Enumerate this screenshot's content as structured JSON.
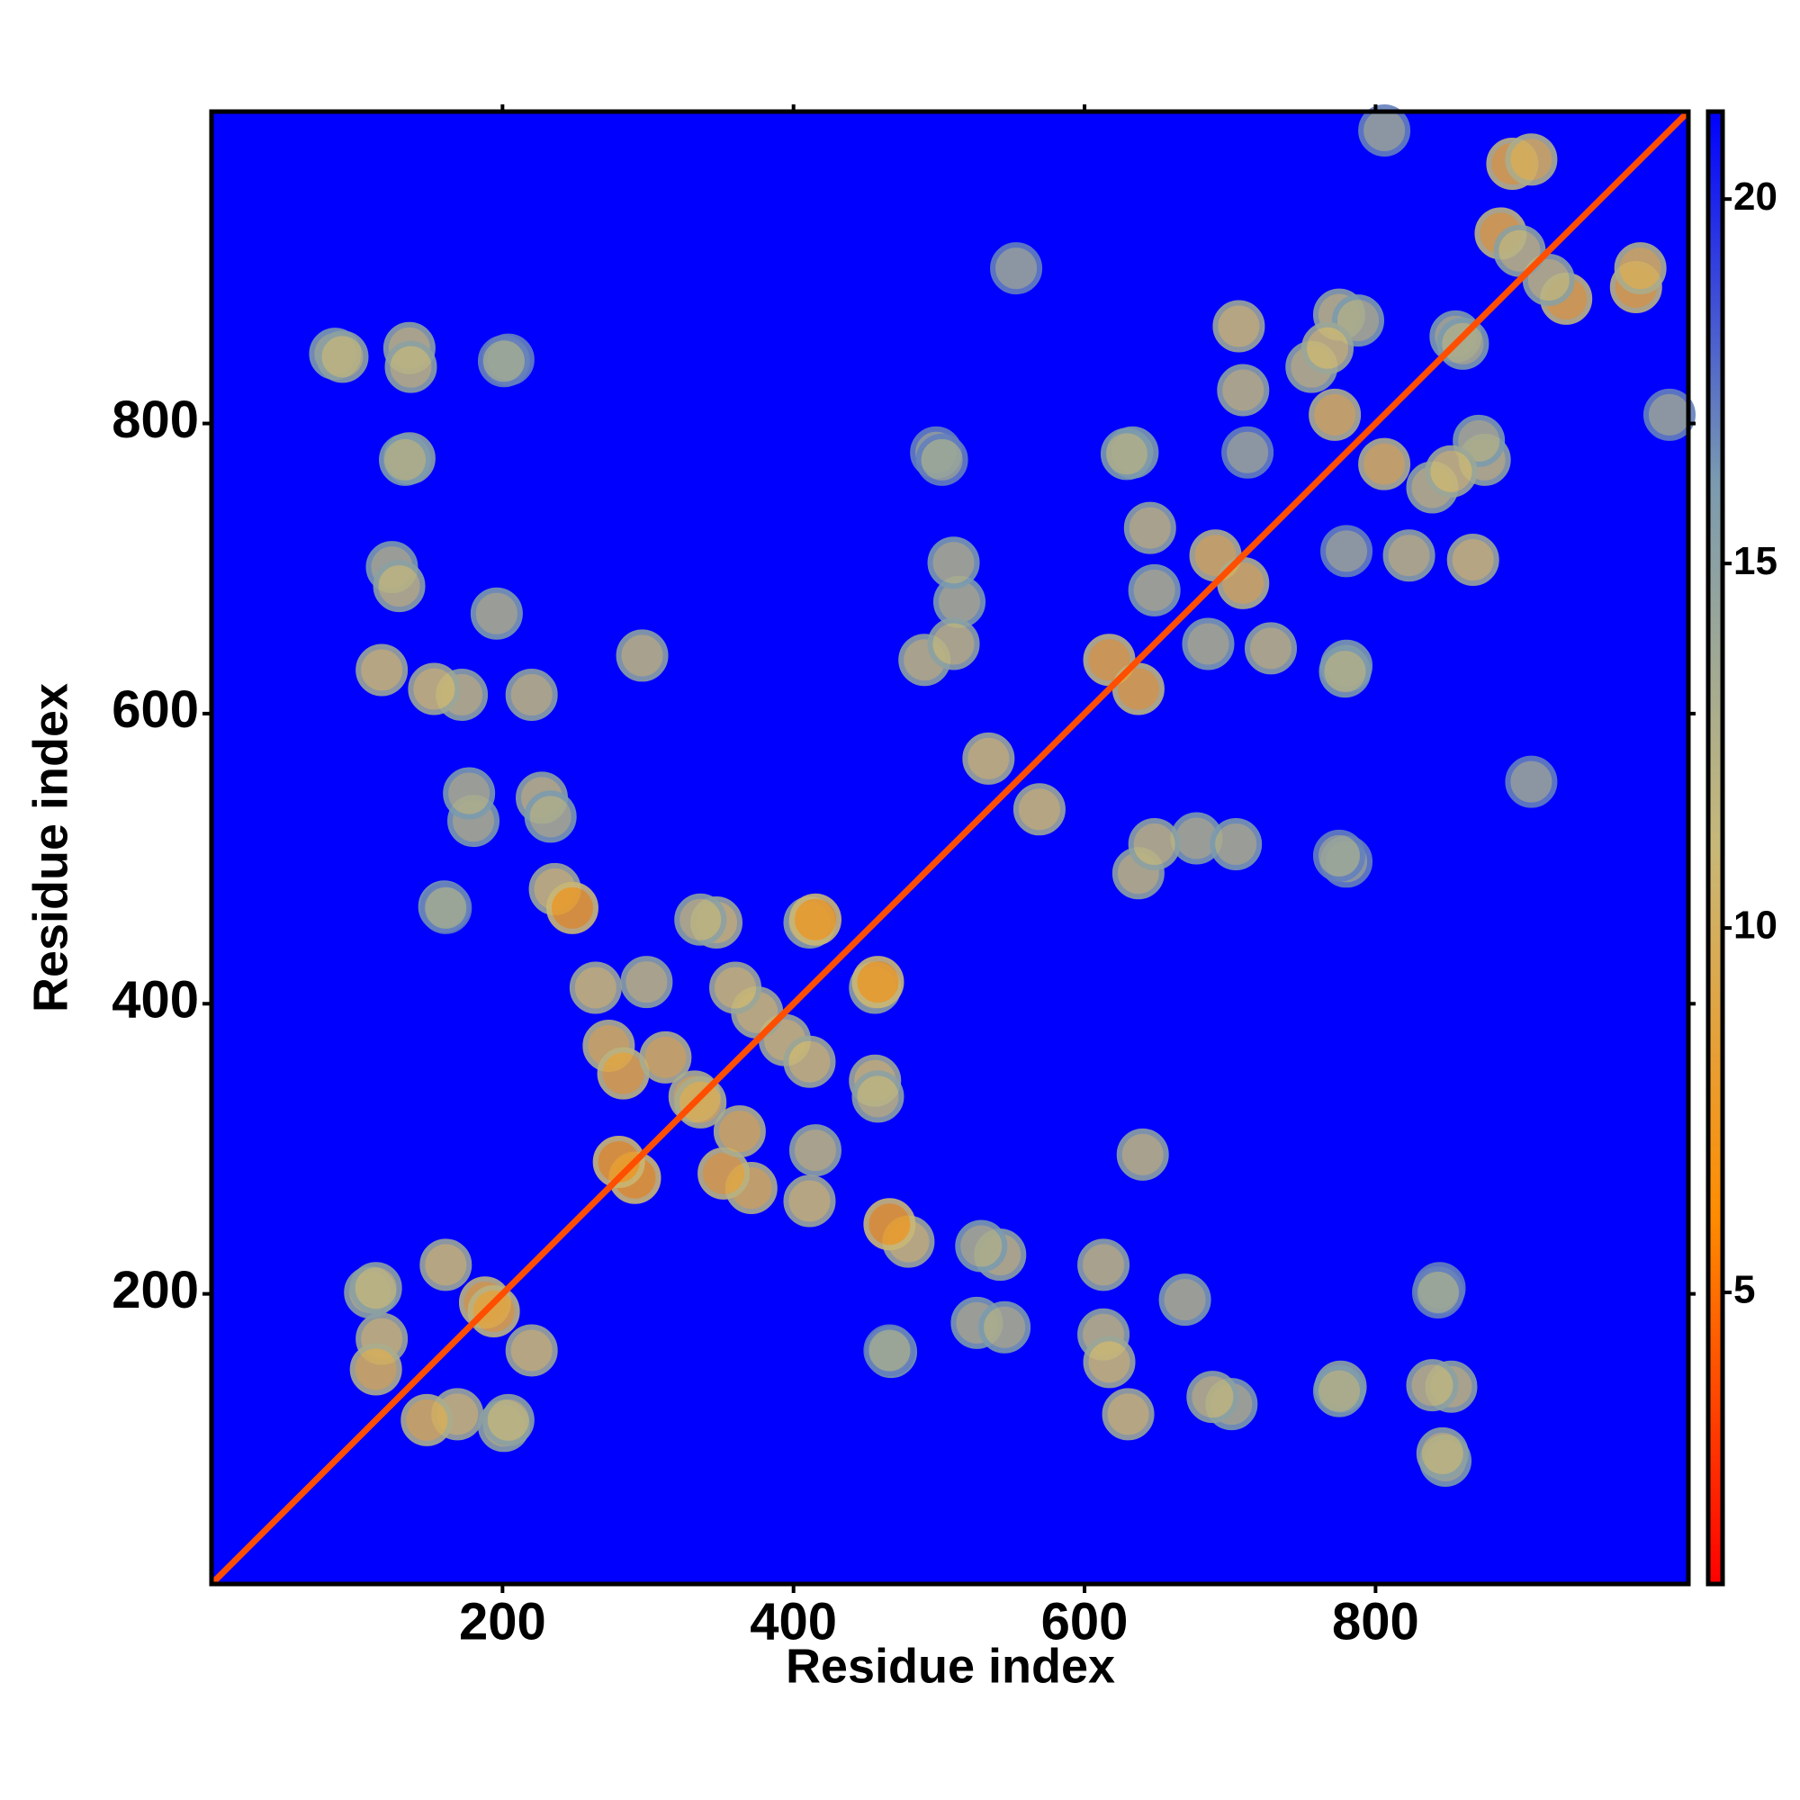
{
  "chart_data": {
    "type": "heatmap",
    "x_label": "Residue index",
    "y_label": "Residue index",
    "xlim": [
      0,
      1015
    ],
    "ylim": [
      0,
      1015
    ],
    "xticks": [
      200,
      400,
      600,
      800
    ],
    "yticks": [
      200,
      400,
      600,
      800
    ],
    "clim": [
      1,
      21.2
    ],
    "cticks": [
      5,
      10,
      15,
      20
    ],
    "colors": [
      "#ff0000",
      "#ff8c00",
      "#c8b878",
      "#7a9ab0",
      "#0000ff"
    ],
    "diagonal": 3.8,
    "contacts": {
      "x": [
        85,
        136,
        204,
        136,
        124,
        117,
        172,
        220,
        196,
        227,
        236,
        180,
        160,
        299,
        347,
        411,
        458,
        394,
        458,
        332,
        490,
        514,
        498,
        553,
        648,
        633,
        712,
        706,
        775,
        806,
        894,
        982,
        529,
        640,
        617,
        688,
        775,
        839,
        846,
        843,
        648,
        775,
        704,
        466,
        411,
        371,
        545,
        466,
        569,
        871,
        855,
        839,
        779,
        823,
        117,
        188,
        109,
        204,
        148,
        220,
        283,
        363,
        411,
        291,
        617,
        690,
        728,
        767,
        806,
        886,
        919
      ],
      "y": [
        848,
        852,
        844,
        776,
        701,
        630,
        613,
        613,
        669,
        542,
        479,
        526,
        467,
        415,
        456,
        456,
        415,
        375,
        336,
        336,
        637,
        677,
        780,
        907,
        685,
        780,
        780,
        867,
        875,
        1002,
        979,
        907,
        233,
        296,
        153,
        129,
        133,
        137,
        90,
        201,
        510,
        502,
        510,
        248,
        264,
        273,
        177,
        161,
        534,
        788,
        860,
        756,
        629,
        709,
        169,
        194,
        201,
        113,
        113,
        161,
        352,
        312,
        360,
        280,
        637,
        709,
        645,
        852,
        772,
        931,
        899
      ],
      "values": [
        13,
        12,
        14,
        12,
        13,
        11,
        12,
        12,
        13,
        12,
        11,
        13,
        13,
        12,
        11,
        12,
        8,
        11,
        12,
        10,
        12,
        13,
        14,
        14,
        13,
        13,
        14,
        11,
        12,
        14,
        9,
        10,
        13,
        12,
        11,
        12,
        13,
        12,
        12,
        14,
        12,
        14,
        13,
        8,
        11,
        10,
        13,
        14,
        11,
        13,
        13,
        12,
        13,
        12,
        11,
        9,
        12,
        12,
        10,
        11,
        9,
        10,
        11,
        8,
        9,
        10,
        12,
        11,
        10,
        9,
        12
      ]
    }
  }
}
